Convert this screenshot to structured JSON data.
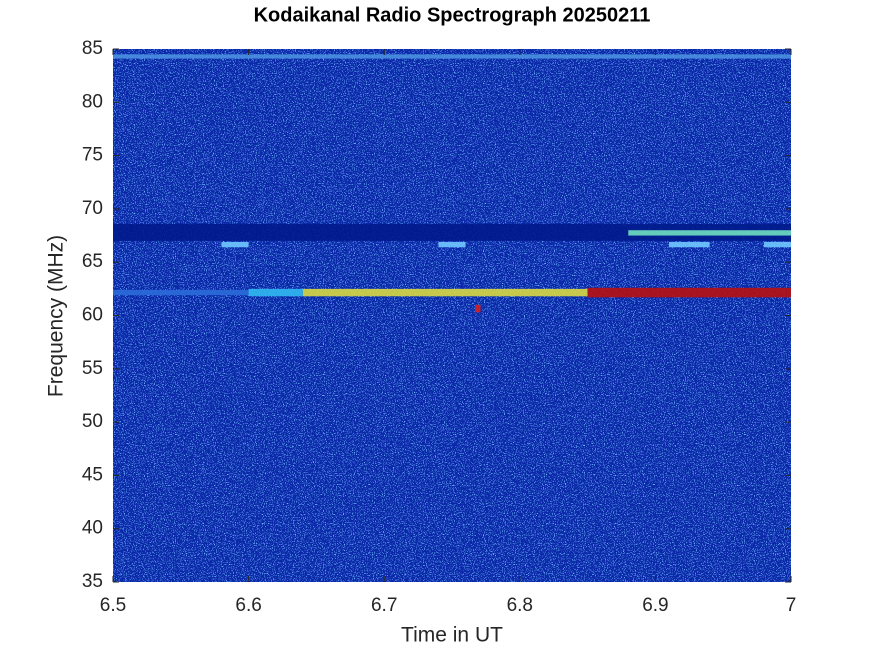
{
  "chart_data": {
    "type": "spectrogram",
    "title": "Kodaikanal Radio Spectrograph  20250211",
    "x_label": "Time in UT",
    "y_label": "Frequency (MHz)",
    "xlim": [
      6.5,
      7
    ],
    "xticks": [
      6.5,
      6.6,
      6.7,
      6.8,
      6.9,
      7
    ],
    "ylim": [
      35,
      85
    ],
    "yticks": [
      35,
      40,
      45,
      50,
      55,
      60,
      65,
      70,
      75,
      80,
      85
    ],
    "background": "#0a28a8",
    "features": [
      {
        "x": [
          6.5,
          7
        ],
        "y": [
          84.1,
          84.5
        ],
        "color": "#4a90e0"
      },
      {
        "x": [
          6.5,
          7
        ],
        "y": [
          67.0,
          68.6
        ],
        "color": "#001a8c"
      },
      {
        "x": [
          6.5,
          6.6
        ],
        "y": [
          61.9,
          62.4
        ],
        "color": "#2a6ad8"
      },
      {
        "x": [
          6.6,
          6.64
        ],
        "y": [
          61.8,
          62.5
        ],
        "color": "#30b8f0"
      },
      {
        "x": [
          6.64,
          6.85
        ],
        "y": [
          61.8,
          62.5
        ],
        "color": "#d8d840"
      },
      {
        "x": [
          6.85,
          7
        ],
        "y": [
          61.7,
          62.6
        ],
        "color": "#b81010"
      },
      {
        "x": [
          6.88,
          7
        ],
        "y": [
          67.5,
          68.0
        ],
        "color": "#70e0c0"
      },
      {
        "x": [
          6.58,
          6.6
        ],
        "y": [
          66.4,
          66.9
        ],
        "color": "#70c8ff"
      },
      {
        "x": [
          6.74,
          6.76
        ],
        "y": [
          66.4,
          66.9
        ],
        "color": "#70c8ff"
      },
      {
        "x": [
          6.91,
          6.94
        ],
        "y": [
          66.4,
          66.9
        ],
        "color": "#70c8ff"
      },
      {
        "x": [
          6.98,
          7
        ],
        "y": [
          66.4,
          66.9
        ],
        "color": "#70c8ff"
      },
      {
        "x": [
          6.767,
          6.771
        ],
        "y": [
          60.3,
          61.0
        ],
        "color": "#d02020"
      }
    ]
  }
}
